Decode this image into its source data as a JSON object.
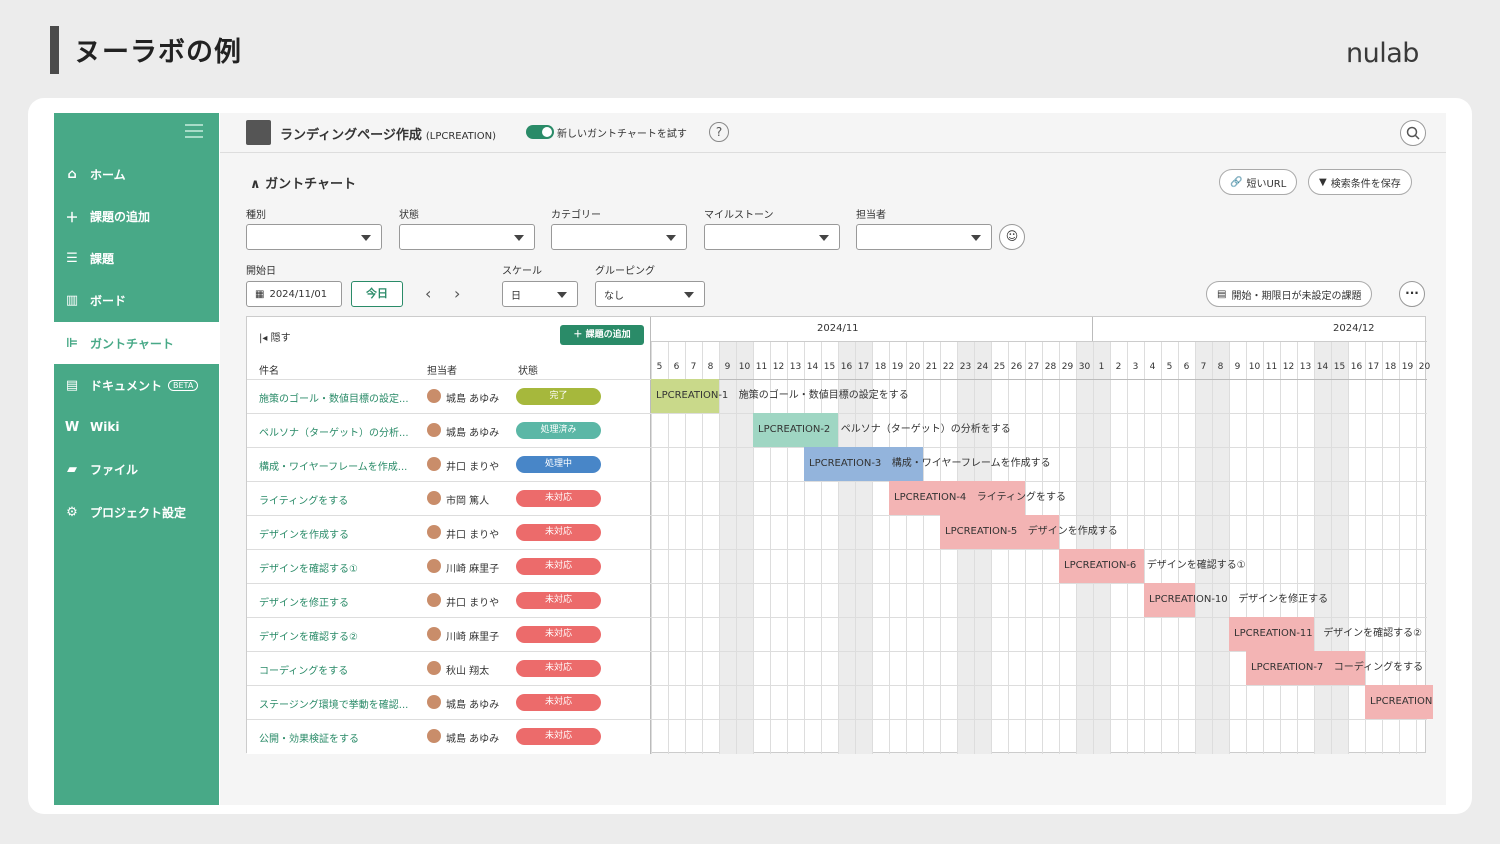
{
  "slide": {
    "title": "ヌーラボの例",
    "brand": "nulab"
  },
  "sidebar": {
    "items": [
      {
        "label": "ホーム",
        "icon": "home-icon"
      },
      {
        "label": "課題の追加",
        "icon": "plus-icon"
      },
      {
        "label": "課題",
        "icon": "list-icon"
      },
      {
        "label": "ボード",
        "icon": "board-icon"
      },
      {
        "label": "ガントチャート",
        "icon": "gantt-icon"
      },
      {
        "label": "ドキュメント",
        "icon": "document-icon",
        "badge": "BETA"
      },
      {
        "label": "Wiki",
        "icon": "wiki-icon"
      },
      {
        "label": "ファイル",
        "icon": "file-icon"
      },
      {
        "label": "プロジェクト設定",
        "icon": "gear-icon"
      }
    ]
  },
  "header": {
    "project_name": "ランディングページ作成",
    "project_key": "(LPCREATION)",
    "toggle_label": "新しいガントチャートを試す",
    "help": "?"
  },
  "gantt_section": {
    "title": "ガントチャート",
    "short_url": "短いURL",
    "save_filter": "検索条件を保存",
    "unset_dates": "開始・期限日が未設定の課題"
  },
  "filters": {
    "type_label": "種別",
    "status_label": "状態",
    "category_label": "カテゴリー",
    "milestone_label": "マイルストーン",
    "assignee_label": "担当者",
    "start_label": "開始日",
    "start_value": "2024/11/01",
    "today": "今日",
    "scale_label": "スケール",
    "scale_value": "日",
    "grouping_label": "グルーピング",
    "grouping_value": "なし"
  },
  "list": {
    "hide": "隠す",
    "add_task": "課題の追加",
    "col_name": "件名",
    "col_assignee": "担当者",
    "col_status": "状態",
    "rows": [
      {
        "name": "施策のゴール・数値目標の設定...",
        "assignee": "城島 あゆみ",
        "status": "完了"
      },
      {
        "name": "ペルソナ（ターゲット）の分析...",
        "assignee": "城島 あゆみ",
        "status": "処理済み"
      },
      {
        "name": "構成・ワイヤーフレームを作成...",
        "assignee": "井口 まりや",
        "status": "処理中"
      },
      {
        "name": "ライティングをする",
        "assignee": "市岡 篤人",
        "status": "未対応"
      },
      {
        "name": "デザインを作成する",
        "assignee": "井口 まりや",
        "status": "未対応"
      },
      {
        "name": "デザインを確認する①",
        "assignee": "川崎 麻里子",
        "status": "未対応"
      },
      {
        "name": "デザインを修正する",
        "assignee": "井口 まりや",
        "status": "未対応"
      },
      {
        "name": "デザインを確認する②",
        "assignee": "川崎 麻里子",
        "status": "未対応"
      },
      {
        "name": "コーディングをする",
        "assignee": "秋山 翔太",
        "status": "未対応"
      },
      {
        "name": "ステージング環境で挙動を確認...",
        "assignee": "城島 あゆみ",
        "status": "未対応"
      },
      {
        "name": "公開・効果検証をする",
        "assignee": "城島 あゆみ",
        "status": "未対応"
      }
    ]
  },
  "timeline": {
    "month1": "2024/11",
    "month2": "2024/12",
    "days": [
      "5",
      "6",
      "7",
      "8",
      "9",
      "10",
      "11",
      "12",
      "13",
      "14",
      "15",
      "16",
      "17",
      "18",
      "19",
      "20",
      "21",
      "22",
      "23",
      "24",
      "25",
      "26",
      "27",
      "28",
      "29",
      "30",
      "1",
      "2",
      "3",
      "4",
      "5",
      "6",
      "7",
      "8",
      "9",
      "10",
      "11",
      "12",
      "13",
      "14",
      "15",
      "16",
      "17",
      "18",
      "19",
      "20"
    ],
    "weekend_idx": [
      4,
      5,
      11,
      12,
      18,
      19,
      25,
      26,
      32,
      33,
      39,
      40
    ],
    "bars": [
      {
        "key": "LPCREATION-1",
        "title": "施策のゴール・数値目標の設定をする",
        "start": 0,
        "len": 4,
        "color": "#c9d98a"
      },
      {
        "key": "LPCREATION-2",
        "title": "ペルソナ（ターゲット）の分析をする",
        "start": 6,
        "len": 5,
        "color": "#9fd6c3"
      },
      {
        "key": "LPCREATION-3",
        "title": "構成・ワイヤーフレームを作成する",
        "start": 9,
        "len": 7,
        "color": "#93b4dc"
      },
      {
        "key": "LPCREATION-4",
        "title": "ライティングをする",
        "start": 14,
        "len": 8,
        "color": "#f3b4b4"
      },
      {
        "key": "LPCREATION-5",
        "title": "デザインを作成する",
        "start": 17,
        "len": 7,
        "color": "#f3b4b4"
      },
      {
        "key": "LPCREATION-6",
        "title": "デザインを確認する①",
        "start": 24,
        "len": 5,
        "color": "#f3b4b4"
      },
      {
        "key": "LPCREATION-10",
        "title": "デザインを修正する",
        "start": 29,
        "len": 3,
        "color": "#f3b4b4"
      },
      {
        "key": "LPCREATION-11",
        "title": "デザインを確認する②",
        "start": 34,
        "len": 5,
        "color": "#f3b4b4"
      },
      {
        "key": "LPCREATION-7",
        "title": "コーディングをする",
        "start": 35,
        "len": 7,
        "color": "#f3b4b4"
      },
      {
        "key": "LPCREATION",
        "title": "",
        "start": 42,
        "len": 4,
        "color": "#f3b4b4"
      }
    ]
  },
  "colors": {
    "accent": "#48a987",
    "status_done": "#a6b83c",
    "status_resolved": "#5bb7a6",
    "status_inprogress": "#4886c8",
    "status_open": "#ec6b6b"
  }
}
